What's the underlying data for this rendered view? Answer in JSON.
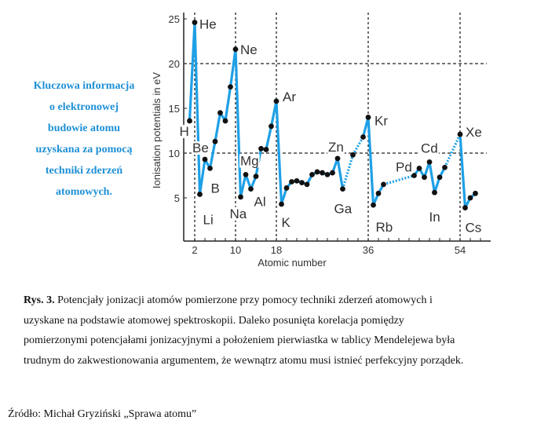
{
  "side_note": {
    "lines": [
      "Kluczowa informacja",
      "o elektronowej",
      "budowie atomu",
      "uzyskana za pomocą",
      "techniki zderzeń",
      "atomowych."
    ],
    "color": "#1e90d6"
  },
  "chart_data": {
    "type": "line",
    "xlabel": "Atomic number",
    "ylabel": "Ionisation potentials in eV",
    "xlim": [
      0,
      60
    ],
    "ylim": [
      0,
      25
    ],
    "x_ticks": [
      2,
      10,
      18,
      36,
      54
    ],
    "y_ticks": [
      5,
      10,
      15,
      20,
      25
    ],
    "x_gridlines": [
      2,
      10,
      18,
      36,
      54
    ],
    "y_gridlines": [
      10,
      20
    ],
    "line_color": "#1ea0e6",
    "marker_color": "#111111",
    "series": [
      {
        "name": "Ionisation potential",
        "points": [
          {
            "x": 1,
            "y": 13.6
          },
          {
            "x": 2,
            "y": 24.6
          },
          {
            "x": 3,
            "y": 5.4
          },
          {
            "x": 4,
            "y": 9.3
          },
          {
            "x": 5,
            "y": 8.3
          },
          {
            "x": 6,
            "y": 11.3
          },
          {
            "x": 7,
            "y": 14.5
          },
          {
            "x": 8,
            "y": 13.6
          },
          {
            "x": 9,
            "y": 17.4
          },
          {
            "x": 10,
            "y": 21.6
          },
          {
            "x": 11,
            "y": 5.1
          },
          {
            "x": 12,
            "y": 7.6
          },
          {
            "x": 13,
            "y": 6.0
          },
          {
            "x": 14,
            "y": 7.4
          },
          {
            "x": 15,
            "y": 10.5
          },
          {
            "x": 16,
            "y": 10.4
          },
          {
            "x": 17,
            "y": 13.0
          },
          {
            "x": 18,
            "y": 15.8
          },
          {
            "x": 19,
            "y": 4.3
          },
          {
            "x": 20,
            "y": 6.1
          },
          {
            "x": 21,
            "y": 6.8
          },
          {
            "x": 22,
            "y": 6.9
          },
          {
            "x": 23,
            "y": 6.7
          },
          {
            "x": 24,
            "y": 6.5
          },
          {
            "x": 25,
            "y": 7.6
          },
          {
            "x": 26,
            "y": 7.9
          },
          {
            "x": 27,
            "y": 7.8
          },
          {
            "x": 28,
            "y": 7.6
          },
          {
            "x": 29,
            "y": 7.8
          },
          {
            "x": 30,
            "y": 9.4
          },
          {
            "x": 31,
            "y": 6.0
          },
          {
            "x": 33,
            "y": 9.8
          },
          {
            "x": 35,
            "y": 11.8
          },
          {
            "x": 36,
            "y": 14.0
          },
          {
            "x": 37,
            "y": 4.2
          },
          {
            "x": 38,
            "y": 5.5
          },
          {
            "x": 39,
            "y": 6.5
          },
          {
            "x": 45,
            "y": 7.5
          },
          {
            "x": 46,
            "y": 8.3
          },
          {
            "x": 47,
            "y": 7.3
          },
          {
            "x": 48,
            "y": 9.0
          },
          {
            "x": 49,
            "y": 5.6
          },
          {
            "x": 50,
            "y": 7.3
          },
          {
            "x": 51,
            "y": 8.4
          },
          {
            "x": 54,
            "y": 12.1
          },
          {
            "x": 55,
            "y": 3.9
          },
          {
            "x": 56,
            "y": 5.0
          },
          {
            "x": 57,
            "y": 5.5
          }
        ],
        "dotted_segments_after_x": [
          31,
          33,
          39,
          51
        ]
      }
    ],
    "annotations": [
      {
        "text": "H",
        "x": 1,
        "y": 13.6
      },
      {
        "text": "He",
        "x": 2,
        "y": 24.6
      },
      {
        "text": "Li",
        "x": 3,
        "y": 5.4
      },
      {
        "text": "Be",
        "x": 4,
        "y": 9.3
      },
      {
        "text": "B",
        "x": 5,
        "y": 8.3
      },
      {
        "text": "Ne",
        "x": 10,
        "y": 21.6
      },
      {
        "text": "Na",
        "x": 11,
        "y": 5.1
      },
      {
        "text": "Mg",
        "x": 12,
        "y": 7.6
      },
      {
        "text": "Al",
        "x": 13,
        "y": 6.0
      },
      {
        "text": "Ar",
        "x": 18,
        "y": 15.8
      },
      {
        "text": "K",
        "x": 19,
        "y": 4.3
      },
      {
        "text": "Zn",
        "x": 30,
        "y": 9.4
      },
      {
        "text": "Ga",
        "x": 31,
        "y": 6.0
      },
      {
        "text": "Kr",
        "x": 36,
        "y": 14.0
      },
      {
        "text": "Rb",
        "x": 37,
        "y": 4.2
      },
      {
        "text": "Pd",
        "x": 46,
        "y": 8.3
      },
      {
        "text": "Cd",
        "x": 48,
        "y": 9.0
      },
      {
        "text": "In",
        "x": 49,
        "y": 5.6
      },
      {
        "text": "Xe",
        "x": 54,
        "y": 12.1
      },
      {
        "text": "Cs",
        "x": 55,
        "y": 3.9
      }
    ]
  },
  "caption": {
    "label": "Rys. 3.",
    "line1": " Potencjały jonizacji atomów pomierzone przy pomocy techniki zderzeń atomowych i",
    "line2": "uzyskane na podstawie atomowej spektroskopii. Daleko posunięta korelacja pomiędzy",
    "line3": "pomierzonymi potencjałami jonizacyjnymi a położeniem pierwiastka w tablicy Mendelejewa była",
    "line4": "trudnym do zakwestionowania argumentem, że wewnątrz atomu musi istnieć perfekcyjny porządek."
  },
  "source": "Źródło: Michał Gryziński „Sprawa atomu”"
}
